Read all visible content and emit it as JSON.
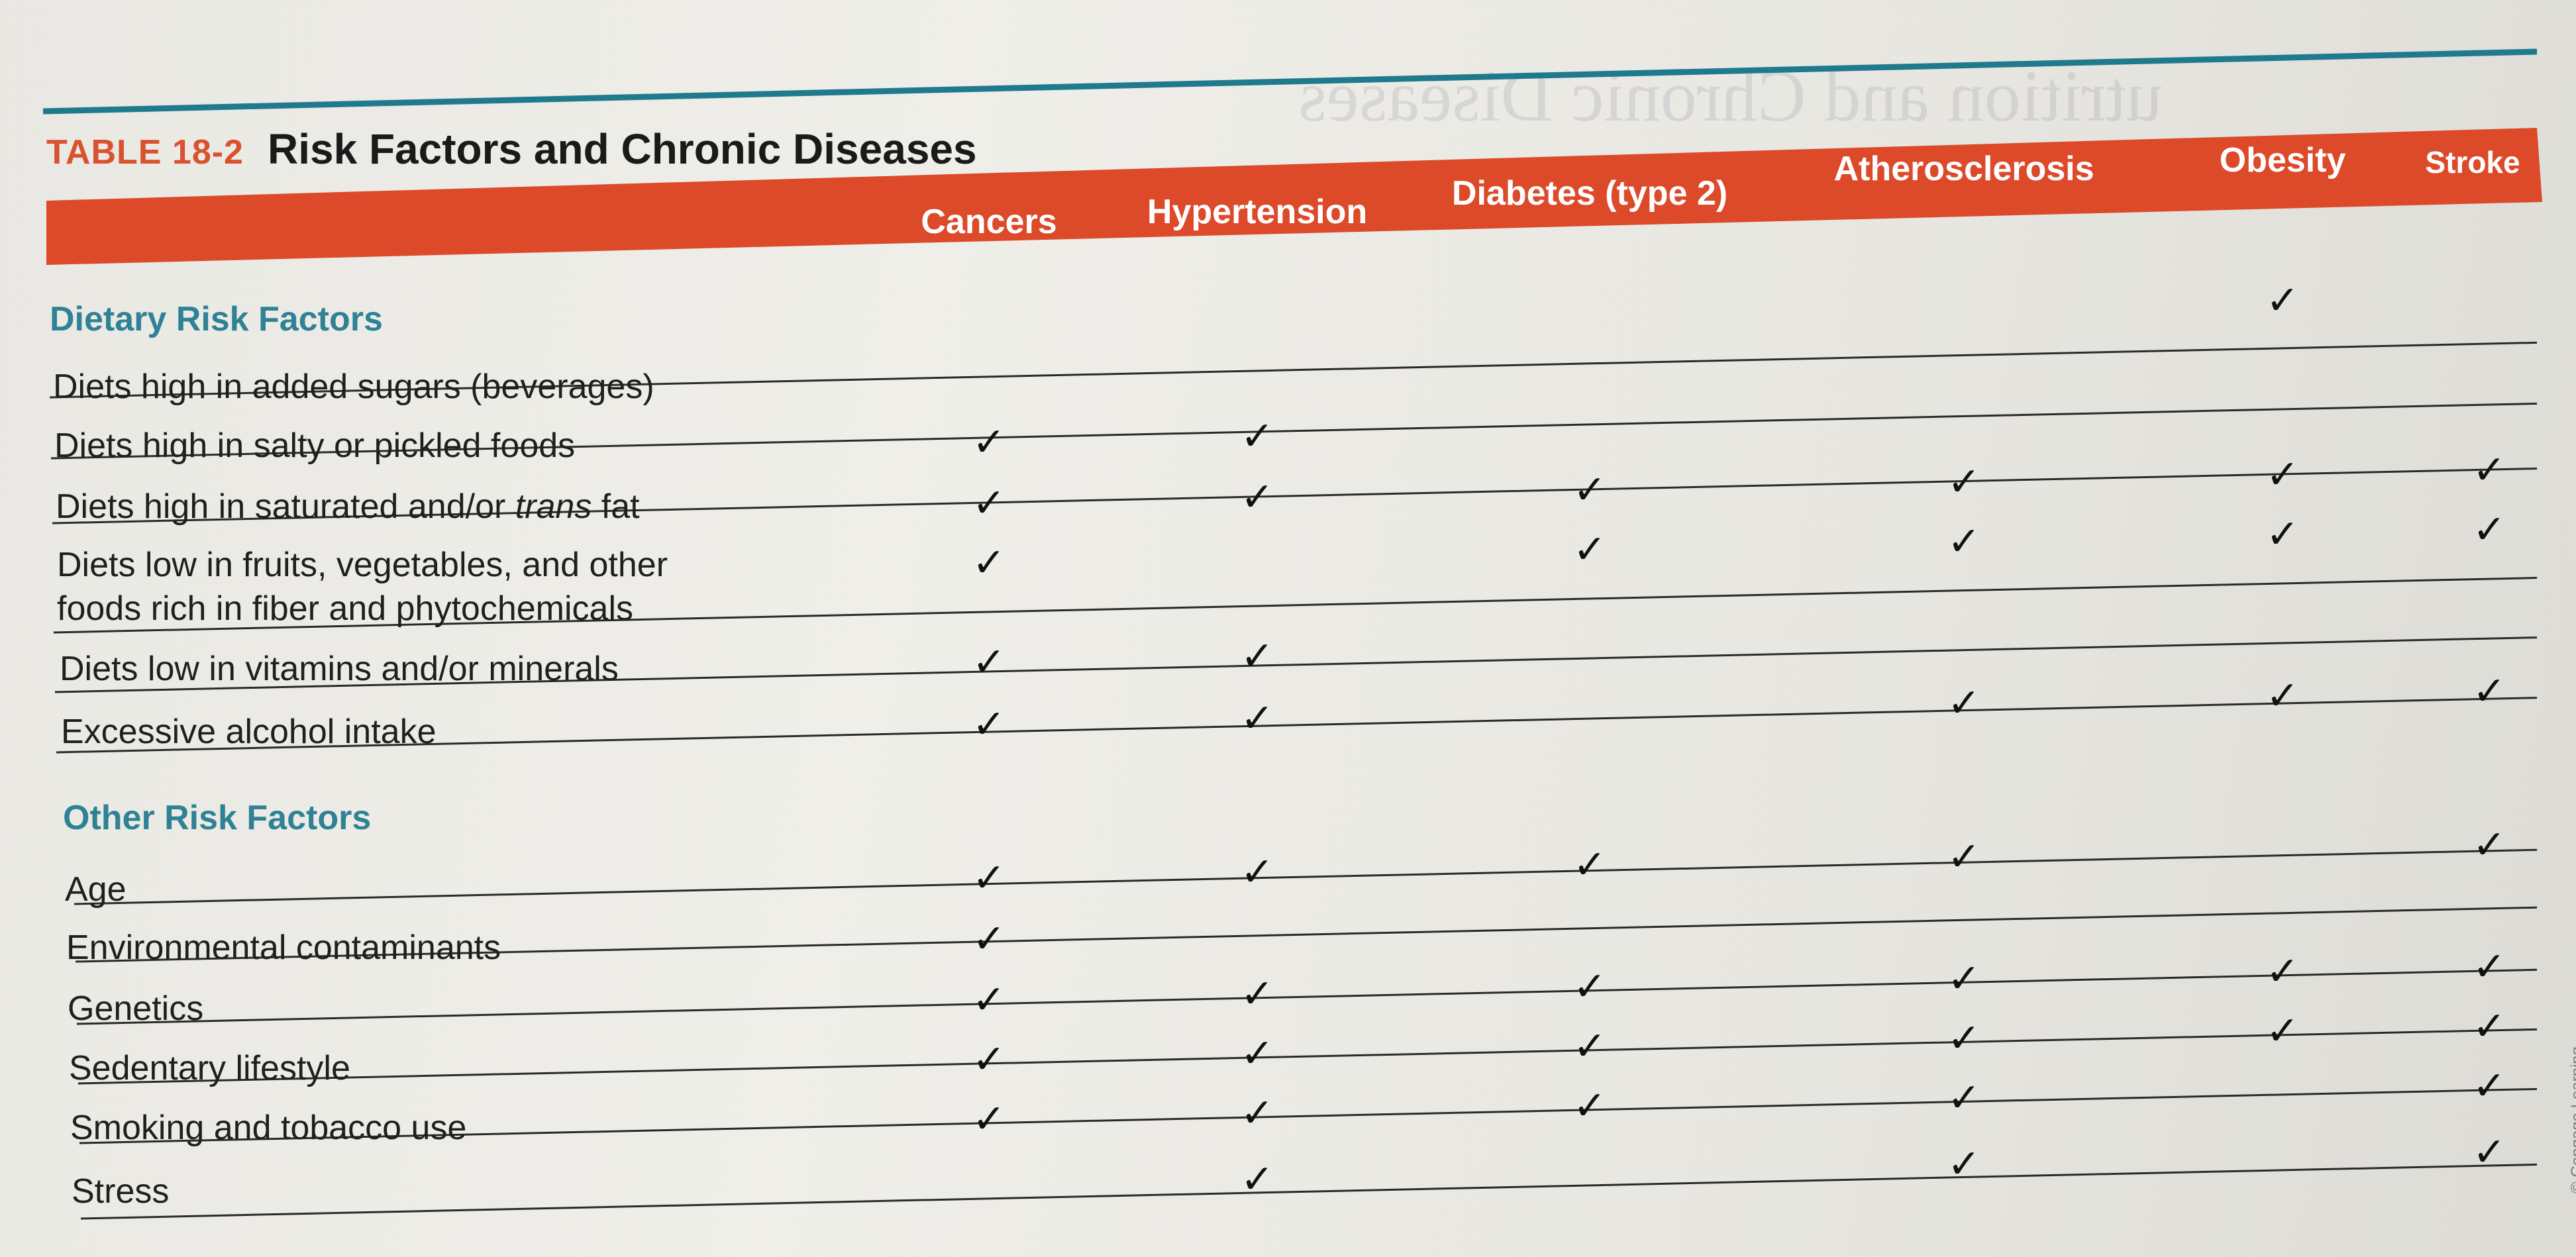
{
  "table": {
    "label": "TABLE 18-2",
    "title": "Risk Factors and Chronic Diseases",
    "columns": [
      "Cancers",
      "Hypertension",
      "Diabetes (type 2)",
      "Atherosclerosis",
      "Obesity",
      "Stroke"
    ],
    "sections": [
      {
        "heading": "Dietary Risk Factors",
        "rows": [
          {
            "label": "Diets high in added sugars (beverages)",
            "checks": [
              false,
              false,
              false,
              false,
              true,
              false
            ]
          },
          {
            "label": "Diets high in salty or pickled foods",
            "checks": [
              true,
              true,
              false,
              false,
              false,
              false
            ]
          },
          {
            "label_parts": [
              "Diets high in saturated and/or ",
              "trans",
              " fat"
            ],
            "checks": [
              true,
              true,
              true,
              true,
              true,
              true
            ]
          },
          {
            "label_lines": [
              "Diets low in fruits, vegetables, and other",
              "foods rich in fiber and phytochemicals"
            ],
            "checks": [
              true,
              false,
              true,
              true,
              true,
              true
            ]
          },
          {
            "label": "Diets low in vitamins and/or minerals",
            "checks": [
              true,
              true,
              false,
              false,
              false,
              false
            ]
          },
          {
            "label": "Excessive alcohol intake",
            "checks": [
              true,
              true,
              false,
              true,
              true,
              true
            ]
          }
        ]
      },
      {
        "heading": "Other Risk Factors",
        "rows": [
          {
            "label": "Age",
            "checks": [
              true,
              true,
              true,
              true,
              false,
              true
            ]
          },
          {
            "label": "Environmental contaminants",
            "checks": [
              true,
              false,
              false,
              false,
              false,
              false
            ]
          },
          {
            "label": "Genetics",
            "checks": [
              true,
              true,
              true,
              true,
              true,
              true
            ]
          },
          {
            "label": "Sedentary lifestyle",
            "checks": [
              true,
              true,
              true,
              true,
              true,
              true
            ]
          },
          {
            "label": "Smoking and tobacco use",
            "checks": [
              true,
              true,
              true,
              true,
              false,
              true
            ]
          },
          {
            "label": "Stress",
            "checks": [
              false,
              true,
              false,
              true,
              false,
              true
            ]
          }
        ]
      }
    ]
  },
  "credit": "© Cengage Learning",
  "colors": {
    "header_band": "#dc4a2a",
    "label_red": "#d9512f",
    "section_teal": "#2f8296",
    "top_rule_teal": "#1f7b8c"
  }
}
